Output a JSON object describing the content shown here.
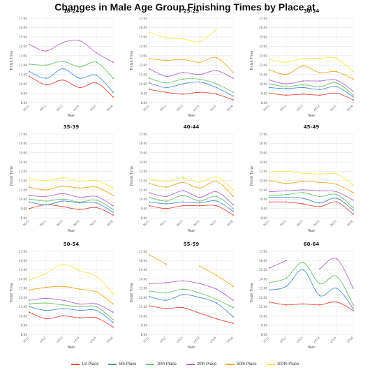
{
  "page": {
    "title": "Changes in Male Age Group Finishing Times by Place at"
  },
  "chart_data": {
    "type": "line",
    "x": [
      "2011",
      "2012",
      "2013",
      "2014",
      "2015",
      "2016"
    ],
    "xlabel": "Year",
    "ylabel": "Finish Time",
    "yticks": [
      "8:00",
      "9:00",
      "10:00",
      "11:00",
      "12:00",
      "13:00",
      "14:00",
      "15:00",
      "16:00",
      "17:00"
    ],
    "ylim": [
      8,
      17
    ],
    "grid": true,
    "legend_position": "bottom",
    "series_meta": [
      {
        "key": "p1",
        "name": "1st Place",
        "color": "#e5483e"
      },
      {
        "key": "p5",
        "name": "5th Place",
        "color": "#4a90d9"
      },
      {
        "key": "p10",
        "name": "10th Place",
        "color": "#6ac46a"
      },
      {
        "key": "p20",
        "name": "20th Place",
        "color": "#b36ad1"
      },
      {
        "key": "p50",
        "name": "50th Place",
        "color": "#f5a623"
      },
      {
        "key": "p100",
        "name": "100th Place",
        "color": "#f4e94a"
      }
    ],
    "panels": [
      {
        "title": "18-24",
        "series": {
          "p1": [
            10.8,
            9.9,
            10.4,
            9.6,
            10.1,
            8.6
          ],
          "p5": [
            11.3,
            10.6,
            11.6,
            10.6,
            10.9,
            9.1
          ],
          "p10": [
            12.1,
            12.0,
            12.4,
            11.8,
            12.3,
            10.6
          ],
          "p20": [
            14.2,
            13.5,
            14.4,
            14.6,
            13.3,
            12.3
          ],
          "p50": [
            null,
            null,
            null,
            null,
            null,
            null
          ],
          "p100": [
            null,
            null,
            null,
            null,
            null,
            null
          ]
        }
      },
      {
        "title": "25-29",
        "series": {
          "p1": [
            9.4,
            9.1,
            8.9,
            9.1,
            8.9,
            8.3
          ],
          "p5": [
            10.1,
            9.6,
            10.0,
            10.2,
            9.6,
            8.7
          ],
          "p10": [
            10.6,
            10.1,
            10.5,
            10.5,
            10.0,
            9.1
          ],
          "p20": [
            11.6,
            10.8,
            11.2,
            11.0,
            11.4,
            10.6
          ],
          "p50": [
            12.7,
            12.5,
            12.6,
            12.3,
            12.8,
            11.2
          ],
          "p100": [
            15.5,
            14.9,
            14.8,
            14.5,
            15.8,
            null
          ]
        }
      },
      {
        "title": "30-34",
        "series": {
          "p1": [
            9.0,
            8.8,
            8.9,
            8.8,
            9.0,
            8.3
          ],
          "p5": [
            9.6,
            9.5,
            9.6,
            9.4,
            9.7,
            8.6
          ],
          "p10": [
            10.0,
            9.7,
            9.9,
            9.7,
            10.1,
            8.8
          ],
          "p20": [
            10.4,
            10.0,
            10.3,
            10.3,
            10.4,
            9.2
          ],
          "p50": [
            11.5,
            11.0,
            11.9,
            11.2,
            11.3,
            10.5
          ],
          "p100": [
            12.6,
            12.3,
            12.7,
            12.7,
            12.7,
            11.3
          ]
        }
      },
      {
        "title": "35-39",
        "series": {
          "p1": [
            9.0,
            9.4,
            9.2,
            8.9,
            9.1,
            8.3
          ],
          "p5": [
            9.7,
            9.4,
            9.8,
            9.6,
            9.6,
            8.6
          ],
          "p10": [
            10.0,
            9.8,
            10.0,
            9.7,
            9.9,
            8.9
          ],
          "p20": [
            10.4,
            10.3,
            10.6,
            10.2,
            10.3,
            9.3
          ],
          "p50": [
            11.3,
            11.0,
            11.4,
            11.2,
            11.3,
            10.4
          ],
          "p100": [
            12.2,
            12.0,
            12.3,
            11.9,
            12.0,
            11.2
          ]
        }
      },
      {
        "title": "40-44",
        "series": {
          "p1": [
            9.3,
            9.0,
            9.3,
            9.3,
            9.3,
            8.3
          ],
          "p5": [
            9.7,
            9.5,
            9.7,
            9.6,
            9.8,
            8.7
          ],
          "p10": [
            10.2,
            9.8,
            10.4,
            9.8,
            10.3,
            9.0
          ],
          "p20": [
            10.7,
            10.3,
            10.9,
            10.2,
            10.8,
            9.4
          ],
          "p50": [
            11.7,
            11.3,
            11.8,
            11.2,
            11.9,
            10.3
          ],
          "p100": [
            12.2,
            11.9,
            12.3,
            11.8,
            12.4,
            11.0
          ]
        }
      },
      {
        "title": "45-49",
        "series": {
          "p1": [
            9.7,
            9.7,
            9.5,
            9.2,
            9.7,
            8.4
          ],
          "p5": [
            10.2,
            10.2,
            10.1,
            9.6,
            10.1,
            8.8
          ],
          "p10": [
            10.4,
            10.5,
            10.7,
            10.3,
            10.5,
            9.1
          ],
          "p20": [
            10.8,
            10.9,
            11.0,
            10.9,
            10.8,
            9.9
          ],
          "p50": [
            12.0,
            11.7,
            11.9,
            11.8,
            11.6,
            10.7
          ],
          "p100": [
            12.9,
            13.0,
            12.8,
            12.7,
            12.7,
            11.5
          ]
        }
      },
      {
        "title": "50-54",
        "series": {
          "p1": [
            10.4,
            9.7,
            10.0,
            9.8,
            9.8,
            8.8
          ],
          "p5": [
            11.0,
            10.6,
            10.8,
            10.6,
            10.6,
            9.3
          ],
          "p10": [
            11.3,
            11.4,
            11.2,
            11.0,
            11.0,
            9.6
          ],
          "p20": [
            11.7,
            11.9,
            11.7,
            11.3,
            11.3,
            10.4
          ],
          "p50": [
            12.8,
            13.1,
            13.2,
            12.9,
            12.6,
            11.3
          ],
          "p100": [
            13.9,
            14.6,
            15.6,
            14.9,
            14.3,
            12.4
          ]
        }
      },
      {
        "title": "55-59",
        "series": {
          "p1": [
            11.1,
            10.8,
            10.9,
            10.3,
            9.7,
            9.2
          ],
          "p5": [
            12.1,
            11.7,
            12.3,
            12.0,
            11.4,
            9.9
          ],
          "p10": [
            12.7,
            12.5,
            12.9,
            12.5,
            11.8,
            10.9
          ],
          "p20": [
            13.5,
            13.6,
            13.8,
            13.5,
            12.9,
            11.7
          ],
          "p50": [
            16.6,
            15.6,
            null,
            15.4,
            14.4,
            13.2
          ],
          "p100": [
            null,
            null,
            null,
            null,
            null,
            null
          ]
        }
      },
      {
        "title": "60-64",
        "series": {
          "p1": [
            11.5,
            11.2,
            11.3,
            11.2,
            11.5,
            10.6
          ],
          "p5": [
            12.8,
            13.2,
            15.0,
            12.2,
            13.0,
            10.8
          ],
          "p10": [
            13.6,
            14.1,
            15.8,
            13.5,
            14.3,
            11.2
          ],
          "p20": [
            15.2,
            16.0,
            null,
            15.1,
            16.2,
            13.0
          ],
          "p50": [
            null,
            null,
            null,
            null,
            null,
            null
          ],
          "p100": [
            null,
            null,
            null,
            null,
            null,
            null
          ]
        }
      }
    ]
  }
}
